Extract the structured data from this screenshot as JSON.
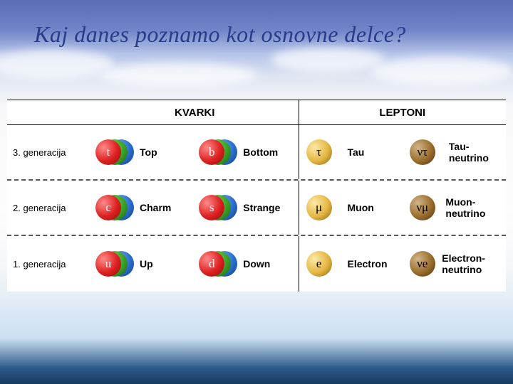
{
  "title": "Kaj danes poznamo kot osnovne delce?",
  "headers": {
    "quarks": "KVARKI",
    "leptons": "LEPTONI"
  },
  "row_labels": [
    "3. generacija",
    "2. generacija",
    "1. generacija"
  ],
  "colors": {
    "title": "#2a3b8a",
    "quark_rgb": [
      "#dd2020",
      "#3aa528",
      "#2a6ed0"
    ],
    "lepton_charged": "#e4b742",
    "lepton_neutrino": "#9a6d2c"
  },
  "rows": [
    {
      "q1": {
        "symbol": "t",
        "name": "Top"
      },
      "q2": {
        "symbol": "b",
        "name": "Bottom"
      },
      "l1": {
        "symbol": "τ",
        "name": "Tau"
      },
      "l2": {
        "symbol": "ντ",
        "name": "Tau-neutrino"
      }
    },
    {
      "q1": {
        "symbol": "c",
        "name": "Charm"
      },
      "q2": {
        "symbol": "s",
        "name": "Strange"
      },
      "l1": {
        "symbol": "μ",
        "name": "Muon"
      },
      "l2": {
        "symbol": "νμ",
        "name": "Muon-neutrino"
      }
    },
    {
      "q1": {
        "symbol": "u",
        "name": "Up"
      },
      "q2": {
        "symbol": "d",
        "name": "Down"
      },
      "l1": {
        "symbol": "e",
        "name": "Electron"
      },
      "l2": {
        "symbol": "νe",
        "name": "Electron-neutrino"
      }
    }
  ]
}
